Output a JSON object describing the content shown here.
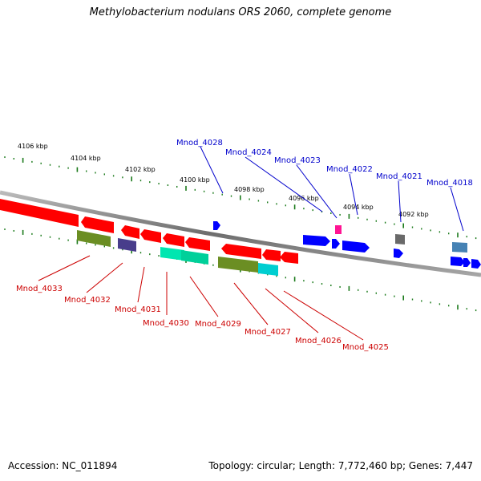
{
  "title": "Methylobacterium nodulans ORS 2060, complete genome",
  "footer": {
    "accession": "Accession: NC_011894",
    "summary": "Topology: circular; Length: 7,772,460 bp; Genes: 7,447"
  },
  "scale_labels": [
    "4106 kbp",
    "4104 kbp",
    "4102 kbp",
    "4100 kbp",
    "4098 kbp",
    "4096 kbp",
    "4094 kbp",
    "4092 kbp"
  ],
  "gene_labels_forward": [
    "Mnod_4028",
    "Mnod_4024",
    "Mnod_4023",
    "Mnod_4022",
    "Mnod_4021",
    "Mnod_4018"
  ],
  "gene_labels_reverse": [
    "Mnod_4033",
    "Mnod_4032",
    "Mnod_4031",
    "Mnod_4030",
    "Mnod_4029",
    "Mnod_4027",
    "Mnod_4026",
    "Mnod_4025"
  ],
  "colors": {
    "forward_label": "#0000cc",
    "reverse_label": "#cc0000",
    "backbone": "#808080",
    "tick": "#1a7a1a",
    "red_gene": "#ff0000",
    "blue_gene": "#0000ff",
    "olive_gene": "#6b8e23",
    "navy_gene": "#483d8b",
    "teal_gene": "#00e6b0",
    "cyan_gene": "#00ced1",
    "pink_gene": "#ff1493",
    "gray_gene": "#696969",
    "steel_gene": "#4682b4"
  }
}
